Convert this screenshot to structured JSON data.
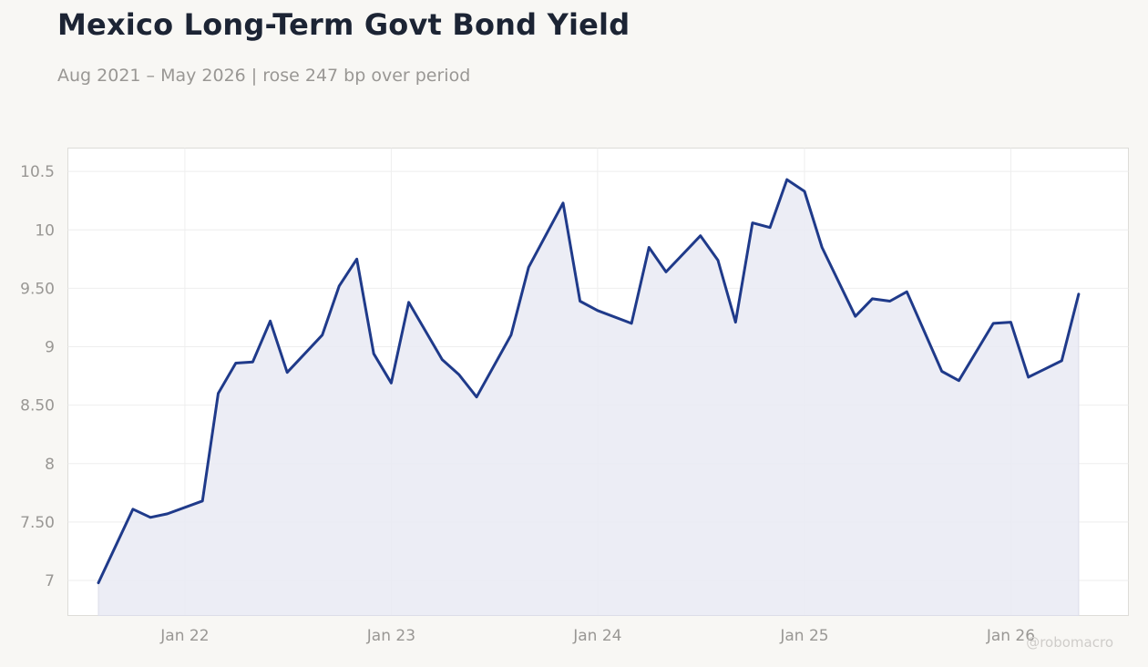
{
  "header": {
    "title": "Mexico Long-Term Govt Bond Yield",
    "subtitle": "Aug 2021 – May 2026 | rose 247 bp over period"
  },
  "watermark": "@robomacro",
  "colors": {
    "line": "#1f3a8a",
    "area": "#e9eaf3",
    "background": "#f8f7f4",
    "plot_background": "#ffffff",
    "grid": "#eeeeee"
  },
  "chart_data": {
    "type": "area",
    "title": "Mexico Long-Term Govt Bond Yield",
    "subtitle": "Aug 2021 – May 2026 | rose 247 bp over period",
    "xlabel": "",
    "ylabel": "",
    "ylim": [
      6.7,
      10.7
    ],
    "xlim": [
      "2021-06-08",
      "2026-07-28"
    ],
    "grid": true,
    "y_ticks": [
      7,
      7.5,
      8,
      8.5,
      9,
      9.5,
      10,
      10.5
    ],
    "y_tick_labels": [
      "7",
      "7.50",
      "8",
      "8.50",
      "9",
      "9.50",
      "10",
      "10.5"
    ],
    "x_ticks": [
      "2022-01-01",
      "2023-01-01",
      "2024-01-01",
      "2025-01-01",
      "2026-01-01"
    ],
    "x_tick_labels": [
      "Jan 22",
      "Jan 23",
      "Jan 24",
      "Jan 25",
      "Jan 26"
    ],
    "series": [
      {
        "x": [
          "2021-08-01",
          "2021-10-01",
          "2021-11-01",
          "2021-12-01",
          "2022-02-01",
          "2022-03-01",
          "2022-04-01",
          "2022-05-01",
          "2022-06-01",
          "2022-07-01",
          "2022-09-01",
          "2022-10-01",
          "2022-11-01",
          "2022-12-01",
          "2023-01-01",
          "2023-02-01",
          "2023-04-01",
          "2023-05-01",
          "2023-06-01",
          "2023-08-01",
          "2023-09-01",
          "2023-11-01",
          "2023-12-01",
          "2024-01-01",
          "2024-03-01",
          "2024-04-01",
          "2024-05-01",
          "2024-07-01",
          "2024-08-01",
          "2024-09-01",
          "2024-10-01",
          "2024-11-01",
          "2024-12-01",
          "2025-01-01",
          "2025-02-01",
          "2025-04-01",
          "2025-05-01",
          "2025-06-01",
          "2025-07-01",
          "2025-09-01",
          "2025-10-01",
          "2025-12-01",
          "2026-01-01",
          "2026-02-01",
          "2026-04-01",
          "2026-05-01"
        ],
        "values": [
          6.98,
          7.61,
          7.54,
          7.57,
          7.68,
          8.6,
          8.86,
          8.87,
          9.22,
          8.78,
          9.1,
          9.52,
          9.75,
          8.94,
          8.69,
          9.38,
          8.89,
          8.76,
          8.57,
          9.1,
          9.68,
          10.23,
          9.39,
          9.31,
          9.2,
          9.85,
          9.64,
          9.95,
          9.74,
          9.21,
          10.06,
          10.02,
          10.43,
          10.33,
          9.85,
          9.26,
          9.41,
          9.39,
          9.47,
          8.79,
          8.71,
          9.2,
          9.21,
          8.74,
          8.88,
          9.45
        ]
      }
    ]
  }
}
